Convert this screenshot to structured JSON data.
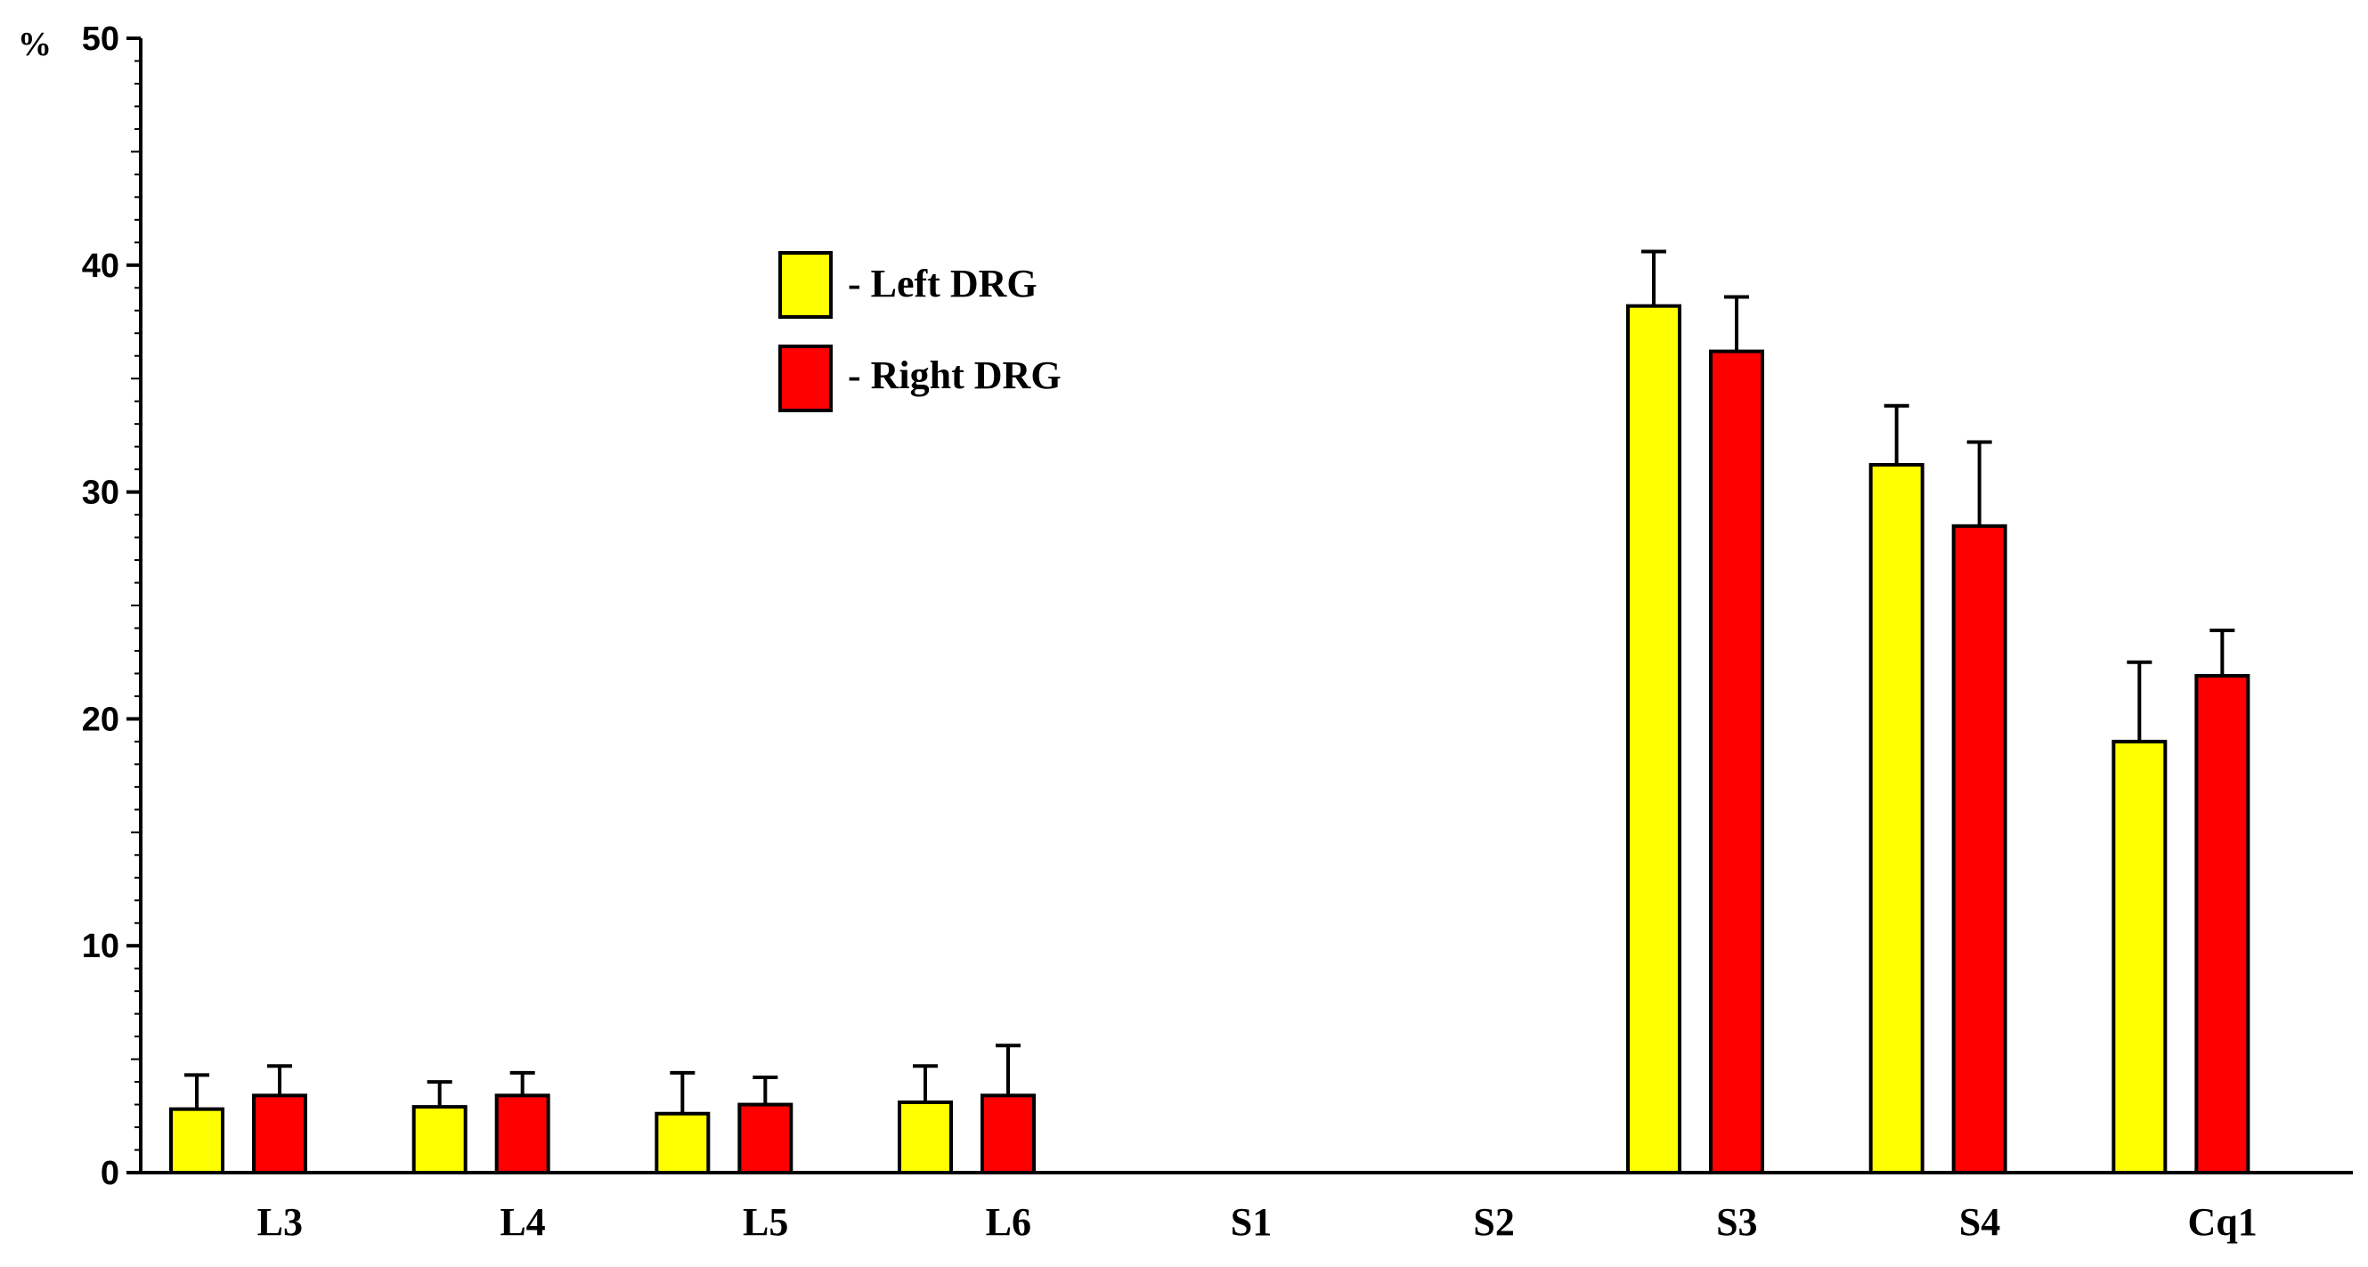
{
  "chart_data": {
    "type": "bar",
    "y_unit_label": "%",
    "ylim": [
      0,
      50
    ],
    "y_ticks": [
      0,
      10,
      20,
      30,
      40,
      50
    ],
    "categories": [
      "L3",
      "L4",
      "L5",
      "L6",
      "S1",
      "S2",
      "S3",
      "S4",
      "Cq1"
    ],
    "series": [
      {
        "name": "- Left DRG",
        "color": "#ffff00",
        "values": [
          2.8,
          2.9,
          2.6,
          3.1,
          0,
          0,
          38.2,
          31.2,
          19.0
        ],
        "errors": [
          1.5,
          1.1,
          1.8,
          1.6,
          0,
          0,
          2.4,
          2.6,
          3.5
        ]
      },
      {
        "name": "- Right DRG",
        "color": "#ff0000",
        "values": [
          3.4,
          3.4,
          3.0,
          3.4,
          0,
          0,
          36.2,
          28.5,
          21.9
        ],
        "errors": [
          1.3,
          1.0,
          1.2,
          2.2,
          0,
          0,
          2.4,
          3.7,
          2.0
        ]
      }
    ],
    "legend_position": "upper-left-center",
    "grid": false
  }
}
